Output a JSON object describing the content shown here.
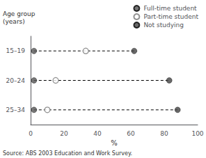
{
  "chart_data": {
    "type": "scatter",
    "categories": [
      "15–19",
      "20–24",
      "25–34"
    ],
    "series": [
      {
        "name": "Full-time student",
        "color": "#555555",
        "marker": "circle",
        "values": [
          2,
          2,
          2
        ]
      },
      {
        "name": "Part-time student",
        "color": "#777777",
        "marker": "circle_open",
        "values": [
          33,
          15,
          10
        ]
      },
      {
        "name": "Not studying",
        "color": "#444444",
        "marker": "circle",
        "values": [
          62,
          83,
          88
        ]
      }
    ],
    "line_style": "dashed",
    "xlabel": "%",
    "ylabel": "Age group\n(years)",
    "xlim": [
      0,
      100
    ],
    "xticks": [
      0,
      20,
      40,
      60,
      80,
      100
    ],
    "grid": false,
    "legend": "upper right",
    "annotations": [
      "Source: ABS 2003 Education and Work Survey."
    ]
  }
}
